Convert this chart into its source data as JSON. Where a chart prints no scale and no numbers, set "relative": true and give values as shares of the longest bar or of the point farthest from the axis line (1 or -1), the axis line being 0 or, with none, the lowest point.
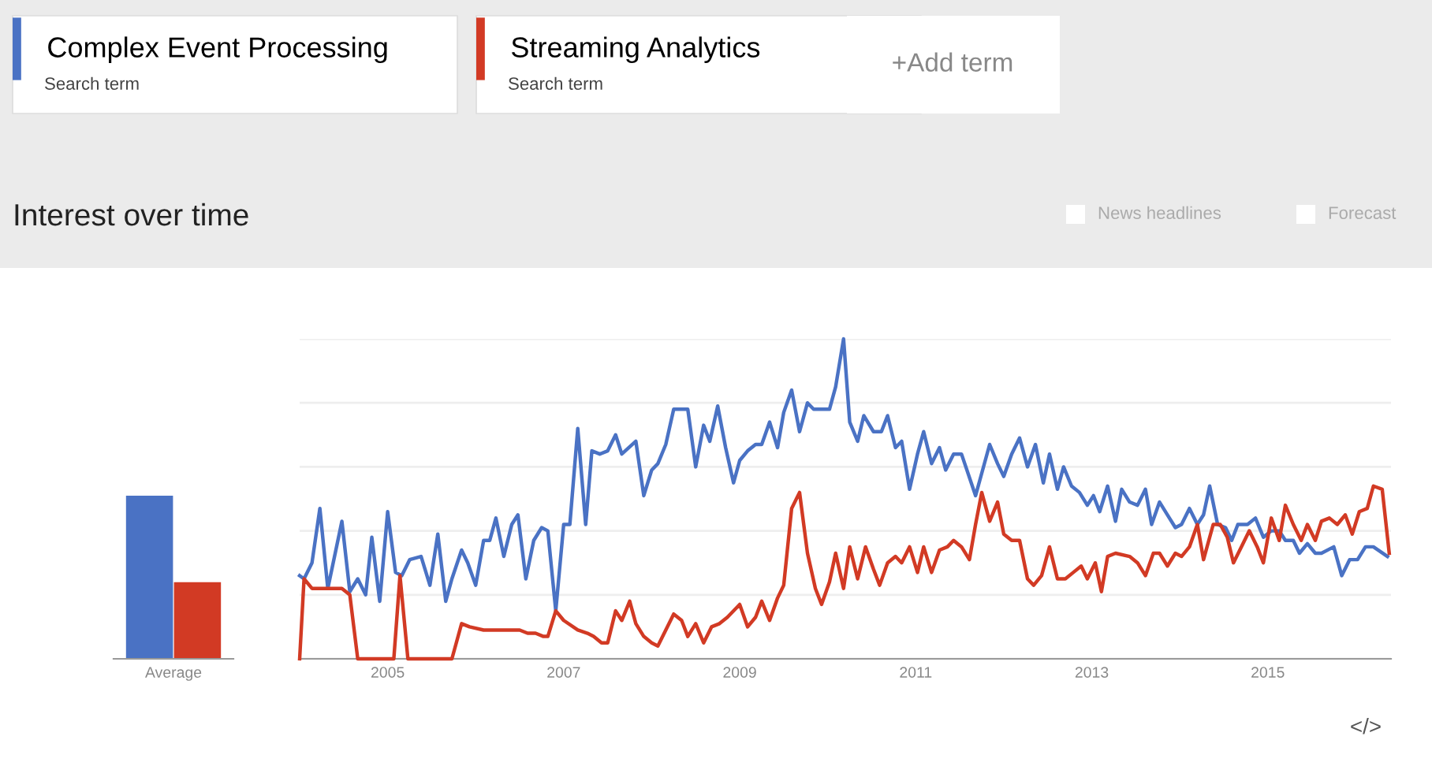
{
  "chart_data": [
    {
      "type": "bar",
      "title": "Interest over time",
      "categories": [
        "Average"
      ],
      "relative": true,
      "series": [
        {
          "color": "#4a72c4",
          "values": [
            1
          ]
        },
        {
          "color": "#d23a24",
          "values": [
            0.47
          ]
        }
      ],
      "annotations": [
        "Search term",
        "Search term",
        "+Add term",
        "News headlines",
        "Forecast",
        "</>"
      ]
    },
    {
      "type": "line",
      "relative": true,
      "legend": "top",
      "grid": "y",
      "xlim": [
        2004,
        2016.4
      ],
      "xticks": [
        2005,
        2007,
        2009,
        2011,
        2013,
        2015
      ],
      "series": [
        {
          "name": "Complex Event Processing",
          "color": "#4a72c4",
          "x": [
            2004.0,
            2004.05,
            2004.14,
            2004.23,
            2004.32,
            2004.48,
            2004.57,
            2004.66,
            2004.75,
            2004.82,
            2004.91,
            2005.0,
            2005.09,
            2005.16,
            2005.25,
            2005.38,
            2005.48,
            2005.57,
            2005.66,
            2005.73,
            2005.84,
            2005.91,
            2006.0,
            2006.09,
            2006.16,
            2006.23,
            2006.32,
            2006.41,
            2006.48,
            2006.57,
            2006.66,
            2006.75,
            2006.82,
            2006.91,
            2007.0,
            2007.07,
            2007.16,
            2007.25,
            2007.32,
            2007.41,
            2007.5,
            2007.59,
            2007.66,
            2007.82,
            2007.91,
            2008.0,
            2008.07,
            2008.16,
            2008.25,
            2008.41,
            2008.5,
            2008.59,
            2008.66,
            2008.75,
            2008.84,
            2008.93,
            2009.0,
            2009.09,
            2009.18,
            2009.25,
            2009.34,
            2009.43,
            2009.5,
            2009.59,
            2009.68,
            2009.77,
            2009.84,
            2010.02,
            2010.09,
            2010.18,
            2010.25,
            2010.34,
            2010.41,
            2010.52,
            2010.61,
            2010.68,
            2010.77,
            2010.84,
            2010.93,
            2011.02,
            2011.09,
            2011.18,
            2011.27,
            2011.34,
            2011.43,
            2011.52,
            2011.68,
            2011.75,
            2011.84,
            2011.93,
            2012.0,
            2012.09,
            2012.18,
            2012.27,
            2012.36,
            2012.45,
            2012.52,
            2012.61,
            2012.68,
            2012.77,
            2012.86,
            2012.95,
            2013.02,
            2013.09,
            2013.18,
            2013.27,
            2013.34,
            2013.43,
            2013.52,
            2013.61,
            2013.68,
            2013.77,
            2013.86,
            2013.95,
            2014.02,
            2014.11,
            2014.2,
            2014.27,
            2014.34,
            2014.43,
            2014.52,
            2014.59,
            2014.66,
            2014.77,
            2014.86,
            2014.95,
            2015.04,
            2015.13,
            2015.2,
            2015.29,
            2015.36,
            2015.45,
            2015.54,
            2015.61,
            2015.75,
            2015.84,
            2015.93,
            2016.02,
            2016.11,
            2016.2,
            2016.36
          ],
          "values": [
            0.26,
            0.25,
            0.3,
            0.47,
            0.22,
            0.43,
            0.21,
            0.25,
            0.2,
            0.38,
            0.18,
            0.46,
            0.27,
            0.26,
            0.31,
            0.32,
            0.23,
            0.39,
            0.18,
            0.25,
            0.34,
            0.3,
            0.23,
            0.37,
            0.37,
            0.44,
            0.32,
            0.42,
            0.45,
            0.25,
            0.37,
            0.41,
            0.4,
            0.15,
            0.42,
            0.42,
            0.72,
            0.42,
            0.65,
            0.64,
            0.65,
            0.7,
            0.64,
            0.68,
            0.51,
            0.59,
            0.61,
            0.67,
            0.78,
            0.78,
            0.6,
            0.73,
            0.68,
            0.79,
            0.66,
            0.55,
            0.62,
            0.65,
            0.67,
            0.67,
            0.74,
            0.66,
            0.77,
            0.84,
            0.71,
            0.8,
            0.78,
            0.78,
            0.85,
            1.0,
            0.74,
            0.68,
            0.76,
            0.71,
            0.71,
            0.76,
            0.66,
            0.68,
            0.53,
            0.64,
            0.71,
            0.61,
            0.66,
            0.59,
            0.64,
            0.64,
            0.51,
            0.58,
            0.67,
            0.61,
            0.57,
            0.64,
            0.69,
            0.6,
            0.67,
            0.55,
            0.64,
            0.53,
            0.6,
            0.54,
            0.52,
            0.48,
            0.51,
            0.46,
            0.54,
            0.43,
            0.53,
            0.49,
            0.48,
            0.53,
            0.42,
            0.49,
            0.45,
            0.41,
            0.42,
            0.47,
            0.42,
            0.45,
            0.54,
            0.42,
            0.41,
            0.37,
            0.42,
            0.42,
            0.44,
            0.38,
            0.4,
            0.4,
            0.37,
            0.37,
            0.33,
            0.36,
            0.33,
            0.33,
            0.35,
            0.26,
            0.31,
            0.31,
            0.35,
            0.35,
            0.32
          ]
        },
        {
          "name": "Streaming Analytics",
          "color": "#d23a24",
          "x": [
            2004.0,
            2004.05,
            2004.14,
            2004.48,
            2004.57,
            2004.66,
            2005.07,
            2005.14,
            2005.23,
            2005.73,
            2005.84,
            2005.93,
            2006.09,
            2006.5,
            2006.59,
            2006.68,
            2006.77,
            2006.82,
            2006.91,
            2007.0,
            2007.16,
            2007.27,
            2007.34,
            2007.43,
            2007.5,
            2007.59,
            2007.66,
            2007.75,
            2007.82,
            2007.91,
            2008.0,
            2008.07,
            2008.16,
            2008.25,
            2008.34,
            2008.41,
            2008.5,
            2008.59,
            2008.68,
            2008.77,
            2008.86,
            2009.0,
            2009.09,
            2009.18,
            2009.25,
            2009.34,
            2009.43,
            2009.5,
            2009.59,
            2009.68,
            2009.77,
            2009.86,
            2009.93,
            2010.02,
            2010.09,
            2010.18,
            2010.25,
            2010.34,
            2010.43,
            2010.52,
            2010.59,
            2010.68,
            2010.77,
            2010.84,
            2010.93,
            2011.02,
            2011.09,
            2011.18,
            2011.27,
            2011.36,
            2011.43,
            2011.52,
            2011.61,
            2011.68,
            2011.75,
            2011.84,
            2011.93,
            2012.0,
            2012.09,
            2012.18,
            2012.27,
            2012.34,
            2012.43,
            2012.52,
            2012.61,
            2012.7,
            2012.79,
            2012.88,
            2012.95,
            2013.04,
            2013.11,
            2013.18,
            2013.27,
            2013.43,
            2013.52,
            2013.61,
            2013.7,
            2013.77,
            2013.86,
            2013.95,
            2014.02,
            2014.11,
            2014.2,
            2014.27,
            2014.38,
            2014.46,
            2014.54,
            2014.61,
            2014.7,
            2014.79,
            2014.88,
            2014.95,
            2015.04,
            2015.13,
            2015.2,
            2015.29,
            2015.38,
            2015.45,
            2015.54,
            2015.61,
            2015.7,
            2015.79,
            2015.88,
            2015.96,
            2016.04,
            2016.13,
            2016.2,
            2016.3,
            2016.38
          ],
          "values": [
            0,
            0.25,
            0.22,
            0.22,
            0.2,
            0,
            0,
            0.26,
            0,
            0,
            0.11,
            0.1,
            0.09,
            0.09,
            0.08,
            0.08,
            0.07,
            0.07,
            0.15,
            0.12,
            0.09,
            0.08,
            0.07,
            0.05,
            0.05,
            0.15,
            0.12,
            0.18,
            0.11,
            0.07,
            0.05,
            0.04,
            0.09,
            0.14,
            0.12,
            0.07,
            0.11,
            0.05,
            0.1,
            0.11,
            0.13,
            0.17,
            0.1,
            0.13,
            0.18,
            0.12,
            0.19,
            0.23,
            0.47,
            0.52,
            0.33,
            0.22,
            0.17,
            0.24,
            0.33,
            0.22,
            0.35,
            0.25,
            0.35,
            0.28,
            0.23,
            0.3,
            0.32,
            0.3,
            0.35,
            0.27,
            0.35,
            0.27,
            0.34,
            0.35,
            0.37,
            0.35,
            0.31,
            0.42,
            0.52,
            0.43,
            0.49,
            0.39,
            0.37,
            0.37,
            0.25,
            0.23,
            0.26,
            0.35,
            0.25,
            0.25,
            0.27,
            0.29,
            0.25,
            0.3,
            0.21,
            0.32,
            0.33,
            0.32,
            0.3,
            0.26,
            0.33,
            0.33,
            0.29,
            0.33,
            0.32,
            0.35,
            0.42,
            0.31,
            0.42,
            0.42,
            0.38,
            0.3,
            0.35,
            0.4,
            0.35,
            0.3,
            0.44,
            0.37,
            0.48,
            0.42,
            0.37,
            0.42,
            0.37,
            0.43,
            0.44,
            0.42,
            0.45,
            0.39,
            0.46,
            0.47,
            0.54,
            0.53,
            0.33
          ]
        }
      ]
    }
  ]
}
